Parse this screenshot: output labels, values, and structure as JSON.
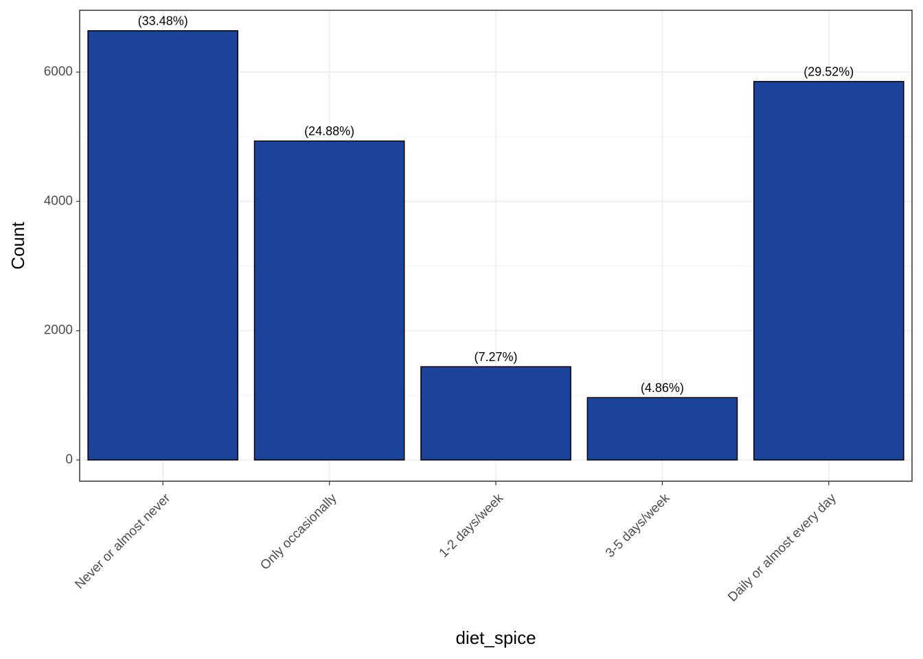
{
  "chart_data": {
    "type": "bar",
    "x_label": "diet_spice",
    "y_label": "Count",
    "categories": [
      "Never or almost never",
      "Only occasionally",
      "1-2 days/week",
      "3-5 days/week",
      "Daily or almost every day"
    ],
    "values": [
      6640,
      4934,
      1442,
      964,
      5855
    ],
    "bar_labels": [
      "(33.48%)",
      "(24.88%)",
      "(7.27%)",
      "(4.86%)",
      "(29.52%)"
    ],
    "color": "#1a4399",
    "ylim": [
      -329,
      6956
    ],
    "yticks": [
      0,
      2000,
      4000,
      6000
    ],
    "minor_yticks": [
      1000,
      3000,
      5000
    ],
    "grid": true
  }
}
